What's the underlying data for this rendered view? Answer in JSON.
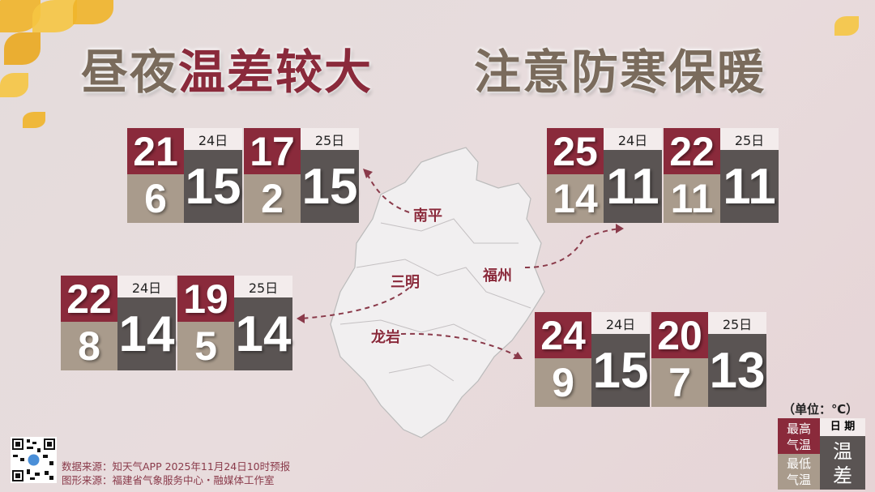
{
  "title": {
    "part1": "昼夜",
    "part2": "温差较大",
    "part3": "注意防寒保暖"
  },
  "colors": {
    "max": "#8a2a3b",
    "min": "#a99b8c",
    "diff": "#5a5453",
    "title_red": "#8a2a3b",
    "title_brown": "#7a6b5c"
  },
  "cities": [
    {
      "name": "南平",
      "days": [
        {
          "date": "24日",
          "max": "21",
          "min": "6",
          "diff": "15"
        },
        {
          "date": "25日",
          "max": "17",
          "min": "2",
          "diff": "15"
        }
      ]
    },
    {
      "name": "福州",
      "days": [
        {
          "date": "24日",
          "max": "25",
          "min": "14",
          "diff": "11"
        },
        {
          "date": "25日",
          "max": "22",
          "min": "11",
          "diff": "11"
        }
      ]
    },
    {
      "name": "三明",
      "days": [
        {
          "date": "24日",
          "max": "22",
          "min": "8",
          "diff": "14"
        },
        {
          "date": "25日",
          "max": "19",
          "min": "5",
          "diff": "14"
        }
      ]
    },
    {
      "name": "龙岩",
      "days": [
        {
          "date": "24日",
          "max": "24",
          "min": "9",
          "diff": "15"
        },
        {
          "date": "25日",
          "max": "20",
          "min": "7",
          "diff": "13"
        }
      ]
    }
  ],
  "legend": {
    "unit": "（单位：℃）",
    "max_l1": "最高",
    "max_l2": "气温",
    "min_l1": "最低",
    "min_l2": "气温",
    "date": "日 期",
    "diff_l1": "温",
    "diff_l2": "差"
  },
  "source": {
    "data": "数据来源：知天气APP  2025年11月24日10时预报",
    "graphic": "图形来源：福建省气象服务中心・融媒体工作室"
  },
  "icons": {
    "qr": "qr-code-icon",
    "leaves": "ginkgo-leaves-decoration"
  }
}
